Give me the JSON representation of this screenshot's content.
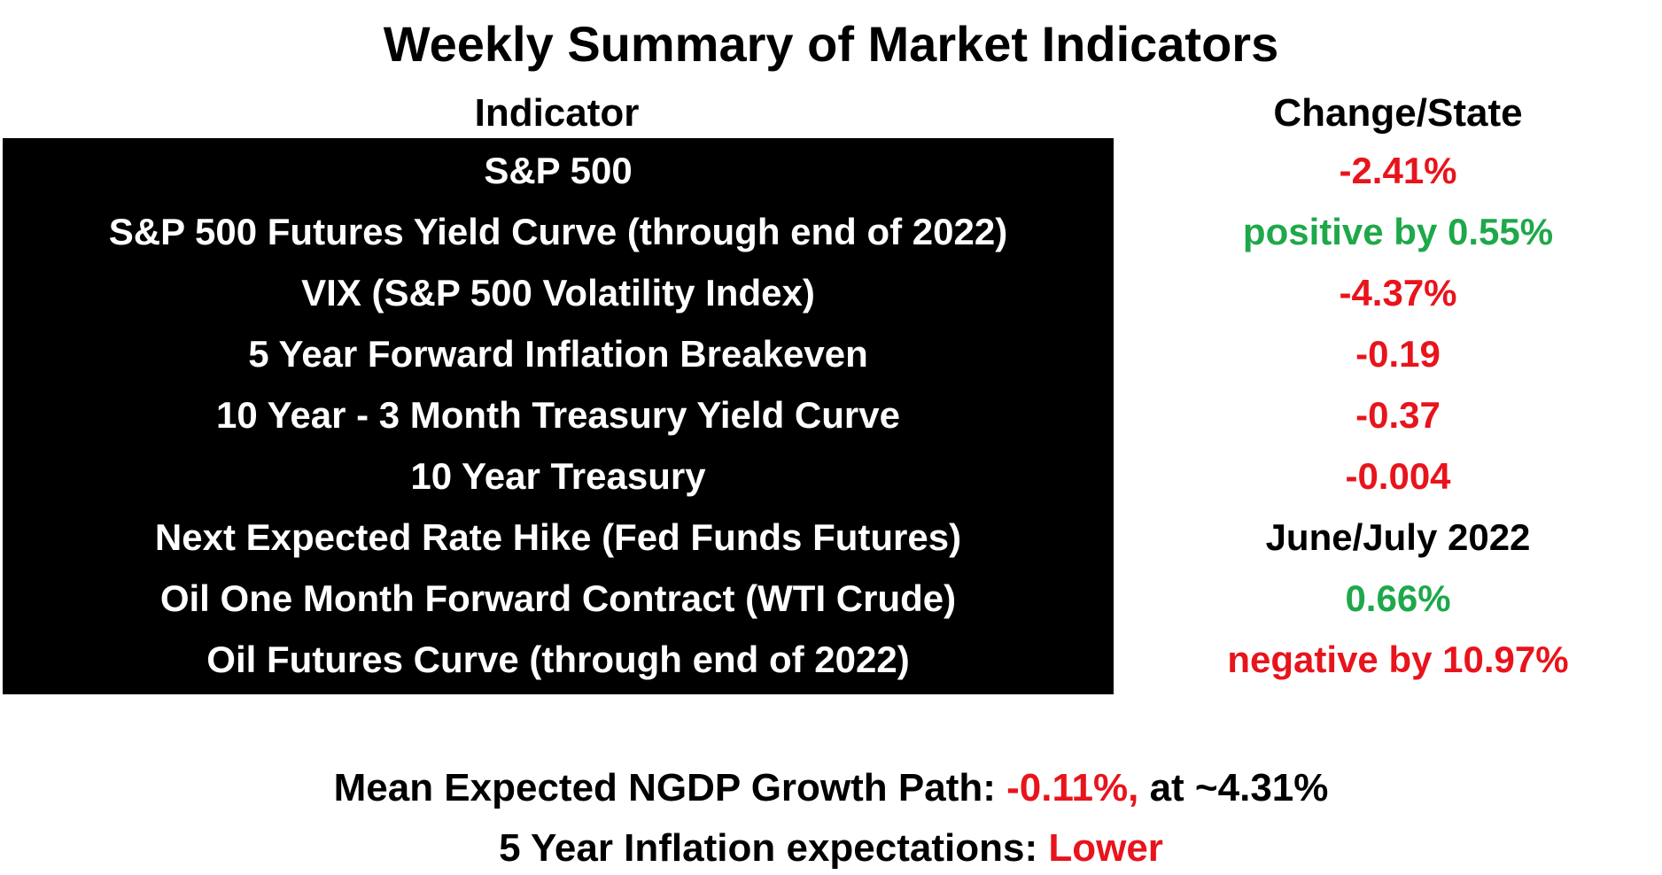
{
  "title": "Weekly Summary of Market Indicators",
  "columns": {
    "indicator": "Indicator",
    "change": "Change/State"
  },
  "rows": [
    {
      "indicator": "S&P 500",
      "value": "-2.41%",
      "color": "#e8141c"
    },
    {
      "indicator": "S&P 500 Futures Yield Curve (through end of 2022)",
      "value": "positive by 0.55%",
      "color": "#1ea84a"
    },
    {
      "indicator": "VIX (S&P 500 Volatility Index)",
      "value": "-4.37%",
      "color": "#e8141c"
    },
    {
      "indicator": "5 Year Forward Inflation Breakeven",
      "value": "-0.19",
      "color": "#e8141c"
    },
    {
      "indicator": "10 Year  - 3 Month Treasury Yield Curve",
      "value": "-0.37",
      "color": "#e8141c"
    },
    {
      "indicator": "10 Year Treasury",
      "value": "-0.004",
      "color": "#e8141c"
    },
    {
      "indicator": "Next Expected Rate Hike (Fed Funds Futures)",
      "value": "June/July 2022",
      "color": "#000000"
    },
    {
      "indicator": "Oil One Month Forward Contract (WTI Crude)",
      "value": "0.66%",
      "color": "#1ea84a"
    },
    {
      "indicator": "Oil Futures Curve (through end of 2022)",
      "value": "negative by 10.97%",
      "color": "#e8141c"
    }
  ],
  "footer": {
    "ngdp_label": "Mean Expected NGDP Growth Path: ",
    "ngdp_change": "-0.11%,",
    "ngdp_level": " at ~4.31%",
    "inflation_label": "5 Year Inflation expectations:  ",
    "inflation_value": "Lower"
  },
  "colors": {
    "red": "#e8141c",
    "green": "#1ea84a",
    "black": "#000000",
    "panel": "#000000"
  }
}
